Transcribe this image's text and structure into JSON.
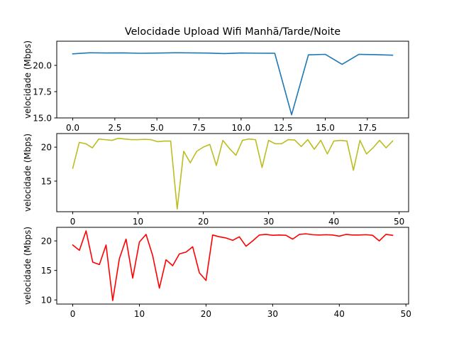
{
  "chart_data": [
    {
      "type": "line",
      "title": "Velocidade Upload Wifi Manhã/Tarde/Noite",
      "ylabel": "velocidade (Mbps)",
      "xlim": [
        -0.95,
        19.95
      ],
      "ylim": [
        15.0,
        22.3
      ],
      "xticks": [
        0,
        2.5,
        5,
        7.5,
        10,
        12.5,
        15,
        17.5
      ],
      "xtick_labels": [
        "0.0",
        "2.5",
        "5.0",
        "7.5",
        "10.0",
        "12.5",
        "15.0",
        "17.5"
      ],
      "yticks": [
        15,
        17.5,
        20
      ],
      "ytick_labels": [
        "15.0",
        "17.5",
        "20.0"
      ],
      "color": "#1f77b4",
      "series": [
        {
          "x": [
            0,
            1,
            2,
            3,
            4,
            5,
            6,
            7,
            8,
            9,
            10,
            11,
            12,
            13,
            14,
            15,
            16,
            17,
            18,
            19
          ],
          "values": [
            21.1,
            21.2,
            21.18,
            21.19,
            21.15,
            21.17,
            21.2,
            21.19,
            21.17,
            21.12,
            21.18,
            21.16,
            21.15,
            15.3,
            21.0,
            21.05,
            20.1,
            21.05,
            21.02,
            20.97
          ]
        }
      ]
    },
    {
      "type": "line",
      "title": "",
      "ylabel": "velocidade (Mbps)",
      "xlim": [
        -2.45,
        51.45
      ],
      "ylim": [
        10.5,
        22.0
      ],
      "xticks": [
        0,
        10,
        20,
        30,
        40,
        50
      ],
      "xtick_labels": [
        "0",
        "10",
        "20",
        "30",
        "40",
        "50"
      ],
      "yticks": [
        15,
        20
      ],
      "ytick_labels": [
        "15",
        "20"
      ],
      "color": "#bcbd22",
      "series": [
        {
          "x": [
            0,
            1,
            2,
            3,
            4,
            5,
            6,
            7,
            8,
            9,
            10,
            11,
            12,
            13,
            14,
            15,
            16,
            17,
            18,
            19,
            20,
            21,
            22,
            23,
            24,
            25,
            26,
            27,
            28,
            29,
            30,
            31,
            32,
            33,
            34,
            35,
            36,
            37,
            38,
            39,
            40,
            41,
            42,
            43,
            44,
            45,
            46,
            47,
            48,
            49
          ],
          "values": [
            16.9,
            20.7,
            20.5,
            19.9,
            21.2,
            21.1,
            21.0,
            21.3,
            21.2,
            21.1,
            21.1,
            21.15,
            21.1,
            20.8,
            20.9,
            20.9,
            10.9,
            19.4,
            17.7,
            19.4,
            20.0,
            20.4,
            17.3,
            21.0,
            19.8,
            18.8,
            21.0,
            21.2,
            21.1,
            17.0,
            21.0,
            20.5,
            20.5,
            21.1,
            21.05,
            20.1,
            21.1,
            19.7,
            21.0,
            19.0,
            20.9,
            21.0,
            20.9,
            16.6,
            21.0,
            19.0,
            19.9,
            21.0,
            19.9,
            20.9
          ]
        }
      ]
    },
    {
      "type": "line",
      "title": "",
      "ylabel": "velocidade (Mbps)",
      "xlim": [
        -2.4,
        50.4
      ],
      "ylim": [
        9.3,
        22.3
      ],
      "xticks": [
        0,
        10,
        20,
        30,
        40,
        50
      ],
      "xtick_labels": [
        "0",
        "10",
        "20",
        "30",
        "40",
        "50"
      ],
      "yticks": [
        10,
        15,
        20
      ],
      "ytick_labels": [
        "10",
        "15",
        "20"
      ],
      "color": "#ff0000",
      "series": [
        {
          "x": [
            0,
            1,
            2,
            3,
            4,
            5,
            6,
            7,
            8,
            9,
            10,
            11,
            12,
            13,
            14,
            15,
            16,
            17,
            18,
            19,
            20,
            21,
            22,
            23,
            24,
            25,
            26,
            27,
            28,
            29,
            30,
            31,
            32,
            33,
            34,
            35,
            36,
            37,
            38,
            39,
            40,
            41,
            42,
            43,
            44,
            45,
            46,
            47,
            48
          ],
          "values": [
            19.3,
            18.4,
            21.7,
            16.4,
            16.0,
            19.3,
            9.9,
            17.0,
            20.3,
            13.7,
            19.8,
            21.1,
            17.5,
            12.0,
            16.8,
            15.8,
            17.8,
            18.1,
            19.0,
            14.6,
            13.3,
            21.0,
            20.7,
            20.5,
            20.1,
            20.7,
            19.1,
            20.0,
            21.0,
            21.1,
            20.95,
            21.0,
            20.95,
            20.3,
            21.1,
            21.2,
            21.05,
            21.0,
            21.05,
            21.0,
            20.8,
            21.1,
            21.0,
            21.0,
            21.05,
            20.95,
            20.0,
            21.1,
            20.95
          ]
        }
      ]
    }
  ]
}
